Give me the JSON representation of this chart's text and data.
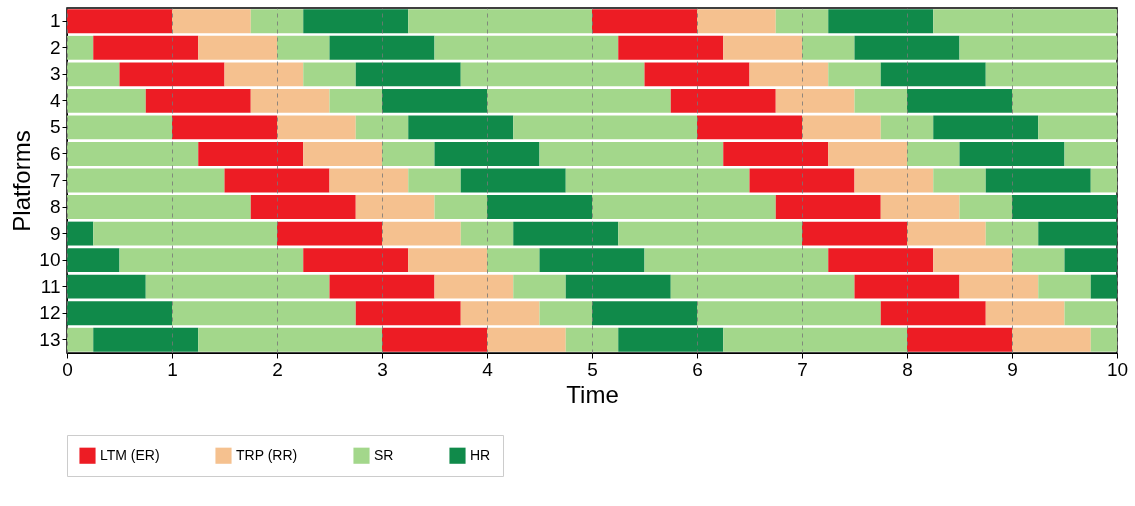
{
  "chart_data": {
    "type": "bar",
    "orientation": "horizontal",
    "stacked": true,
    "xlabel": "Time",
    "ylabel": "Platforms",
    "categories": [
      "1",
      "2",
      "3",
      "4",
      "5",
      "6",
      "7",
      "8",
      "9",
      "10",
      "11",
      "12",
      "13"
    ],
    "xlim": [
      0,
      10
    ],
    "xticks": [
      0,
      1,
      2,
      3,
      4,
      5,
      6,
      7,
      8,
      9,
      10
    ],
    "grid": "x",
    "legend": "bottom",
    "series": [
      {
        "color": "#a3d78b",
        "values": [
          null,
          0.25,
          0.5,
          0.75,
          1,
          1.25,
          1.5,
          1.75,
          null,
          null,
          null,
          null,
          0.25
        ]
      },
      {
        "color": "#108a4a",
        "values": [
          null,
          null,
          null,
          null,
          null,
          null,
          null,
          null,
          0.25,
          0.5,
          0.75,
          1,
          1
        ]
      },
      {
        "color": "#a3d78b",
        "values": [
          null,
          null,
          null,
          null,
          null,
          null,
          null,
          null,
          1.75,
          1.75,
          1.75,
          1.75,
          1.75
        ]
      },
      {
        "name": "LTM (ER)",
        "color": "#ed1c24",
        "values": [
          1,
          1,
          1,
          1,
          1,
          1,
          1,
          1,
          1,
          1,
          1,
          1,
          1
        ]
      },
      {
        "name": "TRP (RR)",
        "color": "#f5c18f",
        "values": [
          0.75,
          0.75,
          0.75,
          0.75,
          0.75,
          0.75,
          0.75,
          0.75,
          0.75,
          0.75,
          0.75,
          0.75,
          0.75
        ]
      },
      {
        "name": "SR",
        "color": "#a3d78b",
        "values": [
          0.5,
          0.5,
          0.5,
          0.5,
          0.5,
          0.5,
          0.5,
          0.5,
          0.5,
          0.5,
          0.5,
          0.5,
          0.5
        ]
      },
      {
        "name": "HR",
        "color": "#108a4a",
        "values": [
          1,
          1,
          1,
          1,
          1,
          1,
          1,
          1,
          1,
          1,
          1,
          1,
          1
        ]
      },
      {
        "color": "#a3d78b",
        "values": [
          1.75,
          1.75,
          1.75,
          1.75,
          1.75,
          1.75,
          1.75,
          1.75,
          1.75,
          1.75,
          1.75,
          1.75,
          1.75
        ]
      },
      {
        "color": "#ed1c24",
        "values": [
          1,
          1,
          1,
          1,
          1,
          1,
          1,
          1,
          1,
          1,
          1,
          1,
          1
        ]
      },
      {
        "color": "#f5c18f",
        "values": [
          0.75,
          0.75,
          0.75,
          0.75,
          0.75,
          0.75,
          0.75,
          0.75,
          0.75,
          0.75,
          0.75,
          0.75,
          0.75
        ]
      },
      {
        "color": "#a3d78b",
        "values": [
          0.5,
          0.5,
          0.5,
          0.5,
          0.5,
          0.5,
          0.5,
          0.5,
          0.5,
          0.5,
          0.5,
          0.5,
          0.25
        ]
      },
      {
        "color": "#108a4a",
        "values": [
          1,
          1,
          1,
          1,
          1,
          1,
          1,
          1,
          0.75,
          0.5,
          0.25,
          null,
          null
        ]
      },
      {
        "color": "#a3d78b",
        "values": [
          1.75,
          1.5,
          1.25,
          1,
          0.75,
          0.5,
          0.25,
          null,
          null,
          null,
          null,
          null,
          null
        ]
      }
    ]
  }
}
